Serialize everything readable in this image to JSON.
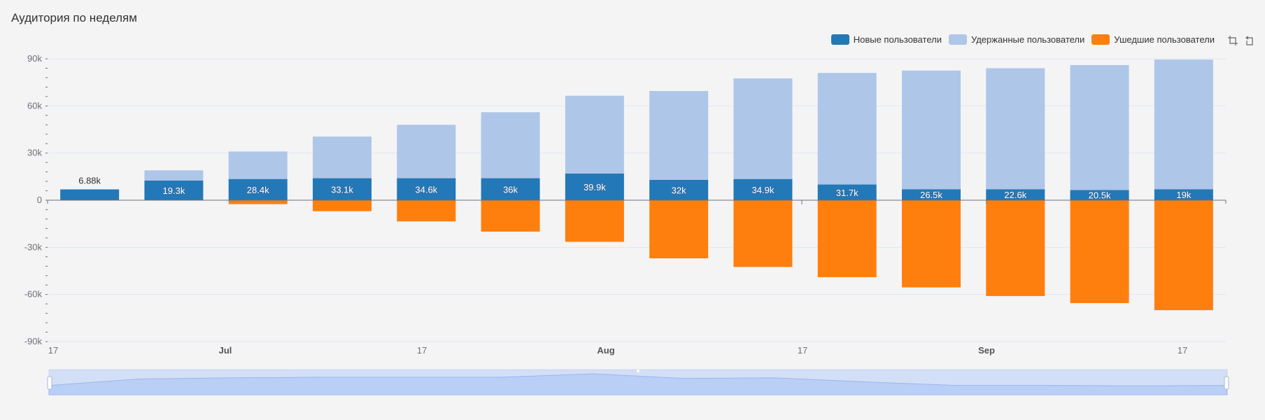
{
  "title": "Аудитория по неделям",
  "legend": [
    {
      "name": "Новые пользователи",
      "color": "#2378b7"
    },
    {
      "name": "Удержанные пользователи",
      "color": "#aec6e8"
    },
    {
      "name": "Ушедшие пользователи",
      "color": "#ff7f0e"
    }
  ],
  "toolbox": [
    "zoom-icon",
    "zoom-reset-icon"
  ],
  "chart_data": {
    "type": "bar",
    "stacked": true,
    "grid": true,
    "legend_position": "top-right",
    "data_zoom_slider": true,
    "ylim": [
      -90000,
      90000
    ],
    "y_ticks": [
      "90k",
      "60k",
      "30k",
      "0",
      "-30k",
      "-60k",
      "-90k"
    ],
    "x_ticks": [
      "17",
      "Jul",
      "17",
      "Aug",
      "17",
      "Sep",
      "17"
    ],
    "series": [
      {
        "name": "Новые пользователи",
        "color": "#2378b7",
        "values": [
          6880,
          12500,
          13500,
          14000,
          14000,
          14000,
          17000,
          13000,
          13500,
          10000,
          7000,
          7000,
          6500,
          7000
        ]
      },
      {
        "name": "Удержанные пользователи",
        "color": "#aec6e8",
        "values": [
          0,
          6500,
          17500,
          26500,
          34000,
          42000,
          49500,
          56500,
          64000,
          71000,
          75500,
          77000,
          79500,
          82500
        ]
      },
      {
        "name": "Ушедшие пользователи",
        "color": "#ff7f0e",
        "values": [
          0,
          0,
          -2500,
          -7000,
          -13500,
          -20000,
          -26500,
          -37000,
          -42500,
          -49000,
          -55500,
          -61000,
          -65500,
          -70000
        ]
      }
    ],
    "bar_labels": [
      "6.88k",
      "19.3k",
      "28.4k",
      "33.1k",
      "34.6k",
      "36k",
      "39.9k",
      "32k",
      "34.9k",
      "31.7k",
      "26.5k",
      "22.6k",
      "20.5k",
      "19k"
    ]
  }
}
